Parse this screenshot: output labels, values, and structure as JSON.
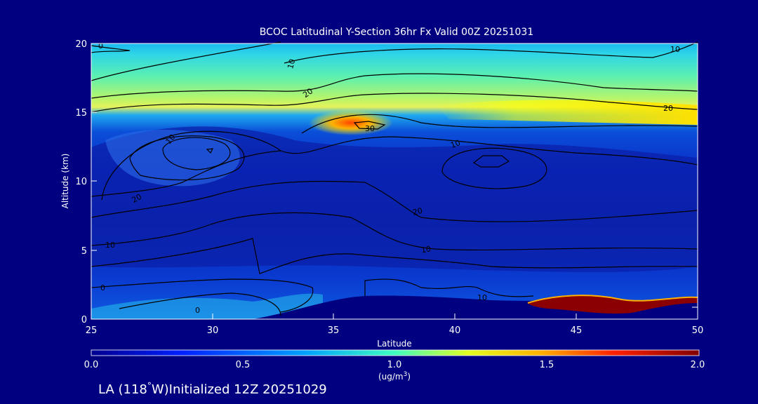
{
  "chart_data": {
    "type": "heatmap",
    "title": "BCOC Latitudinal Y-Section 36hr  Fx Valid 00Z 20251031",
    "xlabel": "Latitude",
    "ylabel": "Altitude (km)",
    "xlim": [
      25,
      50
    ],
    "ylim": [
      0,
      20
    ],
    "x_ticks": [
      "25",
      "30",
      "35",
      "40",
      "45",
      "50"
    ],
    "y_ticks": [
      "0",
      "5",
      "10",
      "15",
      "20"
    ],
    "colorbar": {
      "min": 0.0,
      "max": 2.0,
      "tick_labels": [
        "0.0",
        "0.5",
        "1.0",
        "1.5",
        "2.0"
      ],
      "unit_label": "(ug/m",
      "unit_sup": "3",
      "unit_close": ")"
    },
    "contour_labels": [
      "0",
      "10",
      "20",
      "10",
      "20",
      "30",
      "10",
      "20",
      "10",
      "20",
      "10",
      "0",
      "0",
      "10",
      "10",
      "20"
    ],
    "footer": {
      "text": "LA (118",
      "degree": "°",
      "text2": "W)Initialized 12Z 20251029"
    },
    "colors": {
      "background": "#000080",
      "hot": "#8b0000",
      "peak": "#ff4500",
      "mid": "#ffff00"
    }
  }
}
